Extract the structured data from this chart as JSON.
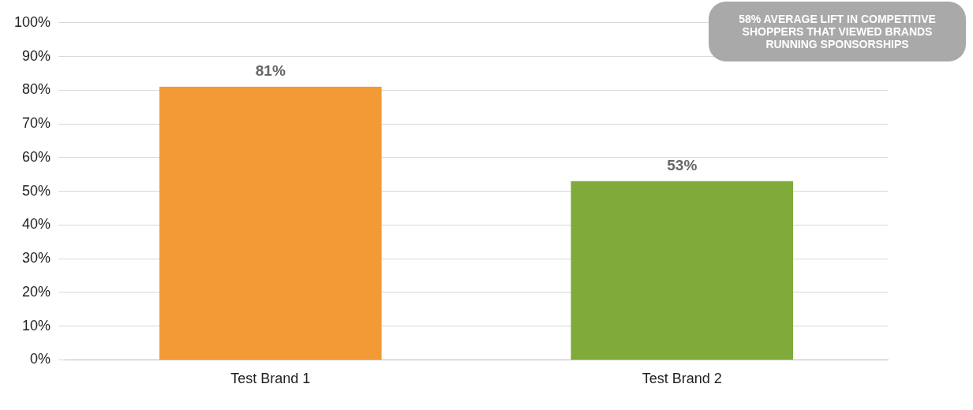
{
  "chart_data": {
    "type": "bar",
    "categories": [
      "Test Brand 1",
      "Test Brand 2"
    ],
    "values": [
      81,
      53
    ],
    "colors": [
      "#f29a35",
      "#80aa3a"
    ],
    "value_labels": [
      "81%",
      "53%"
    ],
    "ylim": [
      0,
      100
    ],
    "yticks": [
      {
        "value": 0,
        "label": "0%"
      },
      {
        "value": 10,
        "label": "10%"
      },
      {
        "value": 20,
        "label": "20%"
      },
      {
        "value": 30,
        "label": "30%"
      },
      {
        "value": 40,
        "label": "40%"
      },
      {
        "value": 50,
        "label": "50%"
      },
      {
        "value": 60,
        "label": "60%"
      },
      {
        "value": 70,
        "label": "70%"
      },
      {
        "value": 80,
        "label": "80%"
      },
      {
        "value": 90,
        "label": "90%"
      },
      {
        "value": 100,
        "label": "100%"
      }
    ],
    "grid": "y",
    "legend": false,
    "annotations": [
      "58% AVERAGE LIFT IN COMPETITIVE SHOPPERS THAT VIEWED BRANDS RUNNING SPONSORSHIPS"
    ]
  }
}
